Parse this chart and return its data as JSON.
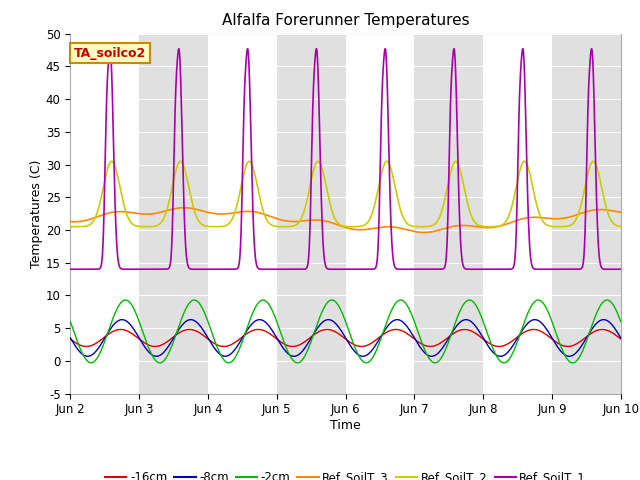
{
  "title": "Alfalfa Forerunner Temperatures",
  "xlabel": "Time",
  "ylabel": "Temperatures (C)",
  "ylim": [
    -5,
    50
  ],
  "xlim_days": [
    2,
    10
  ],
  "annotation": "TA_soilco2",
  "background_color": "#ffffff",
  "band_color": "#e0e0e0",
  "legend_entries": [
    "-16cm",
    "-8cm",
    "-2cm",
    "Ref_SoilT_3",
    "Ref_SoilT_2",
    "Ref_SoilT_1"
  ],
  "line_colors": [
    "#dd0000",
    "#0000bb",
    "#00bb00",
    "#ff8800",
    "#cccc00",
    "#aa00aa"
  ],
  "line_widths": [
    1.0,
    1.0,
    1.0,
    1.2,
    1.2,
    1.2
  ],
  "yticks": [
    -5,
    0,
    5,
    10,
    15,
    20,
    25,
    30,
    35,
    40,
    45,
    50
  ],
  "xtick_positions": [
    2,
    3,
    4,
    5,
    6,
    7,
    8,
    9,
    10
  ],
  "xtick_labels": [
    "Jun 2",
    "Jun 3",
    "Jun 4",
    "Jun 5",
    "Jun 6",
    "Jun 7",
    "Jun 8",
    "Jun 9",
    "Jun 10"
  ]
}
